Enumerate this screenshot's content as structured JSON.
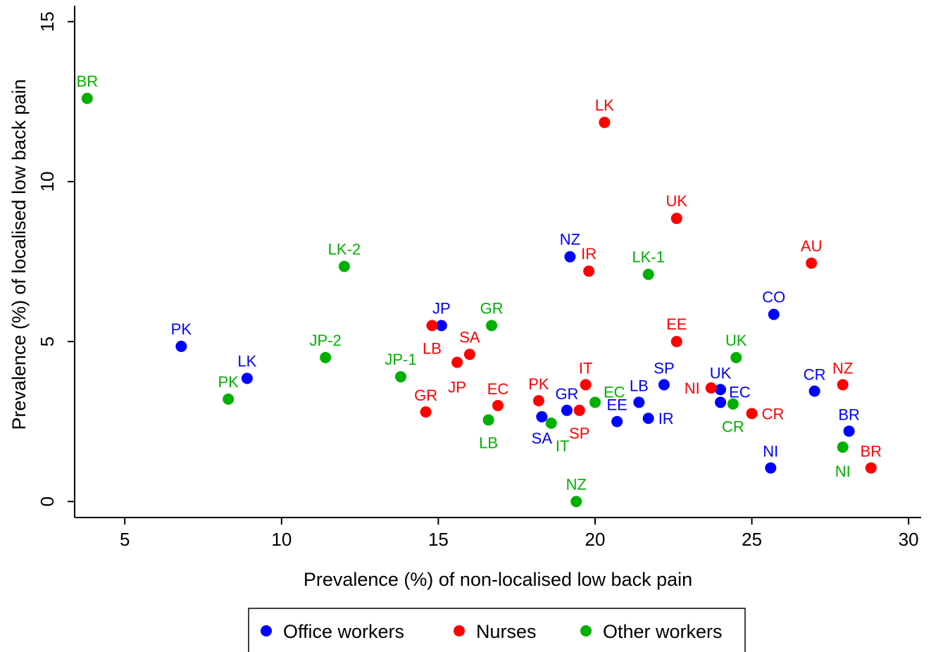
{
  "chart_data": {
    "type": "scatter",
    "xlabel": "Prevalence (%) of non-localised low back pain",
    "ylabel": "Prevalence (%) of localised low back pain",
    "xlim": [
      3.4,
      30.4
    ],
    "ylim": [
      -0.5,
      15.5
    ],
    "xticks": [
      "5",
      "10",
      "15",
      "20",
      "25",
      "30"
    ],
    "yticks": [
      "0",
      "5",
      "10",
      "15"
    ],
    "grid": false,
    "legend_position": "bottom",
    "series": [
      {
        "name": "Office workers",
        "color": "#0000ff",
        "points": [
          {
            "label": "PK",
            "x": 6.8,
            "y": 4.85
          },
          {
            "label": "LK",
            "x": 8.9,
            "y": 3.85
          },
          {
            "label": "JP",
            "x": 15.1,
            "y": 5.5
          },
          {
            "label": "NZ",
            "x": 19.2,
            "y": 7.65
          },
          {
            "label": "GR",
            "x": 19.1,
            "y": 2.85
          },
          {
            "label": "SA",
            "x": 18.3,
            "y": 2.65
          },
          {
            "label": "EE",
            "x": 20.7,
            "y": 2.5
          },
          {
            "label": "LB",
            "x": 21.4,
            "y": 3.1
          },
          {
            "label": "IR",
            "x": 21.7,
            "y": 2.6
          },
          {
            "label": "SP",
            "x": 22.2,
            "y": 3.65
          },
          {
            "label": "UK",
            "x": 24.0,
            "y": 3.5
          },
          {
            "label": "EC",
            "x": 24.0,
            "y": 3.1
          },
          {
            "label": "CO",
            "x": 25.7,
            "y": 5.85
          },
          {
            "label": "CR",
            "x": 27.0,
            "y": 3.45
          },
          {
            "label": "NI",
            "x": 25.6,
            "y": 1.05
          },
          {
            "label": "BR",
            "x": 28.1,
            "y": 2.2
          }
        ]
      },
      {
        "name": "Nurses",
        "color": "#ff0000",
        "points": [
          {
            "label": "LK",
            "x": 20.3,
            "y": 11.85
          },
          {
            "label": "UK",
            "x": 22.6,
            "y": 8.85
          },
          {
            "label": "IR",
            "x": 19.8,
            "y": 7.2
          },
          {
            "label": "AU",
            "x": 26.9,
            "y": 7.45
          },
          {
            "label": "EE",
            "x": 22.6,
            "y": 5.0
          },
          {
            "label": "LB",
            "x": 14.8,
            "y": 5.5
          },
          {
            "label": "SA",
            "x": 16.0,
            "y": 4.6
          },
          {
            "label": "JP",
            "x": 15.6,
            "y": 4.35
          },
          {
            "label": "GR",
            "x": 14.6,
            "y": 2.8
          },
          {
            "label": "EC",
            "x": 16.9,
            "y": 3.0
          },
          {
            "label": "PK",
            "x": 18.2,
            "y": 3.15
          },
          {
            "label": "IT",
            "x": 19.7,
            "y": 3.65
          },
          {
            "label": "SP",
            "x": 19.5,
            "y": 2.85
          },
          {
            "label": "NI",
            "x": 23.7,
            "y": 3.55
          },
          {
            "label": "CR",
            "x": 25.0,
            "y": 2.75
          },
          {
            "label": "NZ",
            "x": 27.9,
            "y": 3.65
          },
          {
            "label": "BR",
            "x": 28.8,
            "y": 1.05
          }
        ]
      },
      {
        "name": "Other workers",
        "color": "#00b000",
        "points": [
          {
            "label": "BR",
            "x": 3.8,
            "y": 12.6
          },
          {
            "label": "LK-2",
            "x": 12.0,
            "y": 7.35
          },
          {
            "label": "JP-2",
            "x": 11.4,
            "y": 4.5
          },
          {
            "label": "PK",
            "x": 8.3,
            "y": 3.2
          },
          {
            "label": "JP-1",
            "x": 13.8,
            "y": 3.9
          },
          {
            "label": "GR",
            "x": 16.7,
            "y": 5.5
          },
          {
            "label": "LB",
            "x": 16.6,
            "y": 2.55
          },
          {
            "label": "IT",
            "x": 18.6,
            "y": 2.45
          },
          {
            "label": "EC",
            "x": 20.0,
            "y": 3.1
          },
          {
            "label": "LK-1",
            "x": 21.7,
            "y": 7.1
          },
          {
            "label": "UK",
            "x": 24.5,
            "y": 4.5
          },
          {
            "label": "CR",
            "x": 24.4,
            "y": 3.05
          },
          {
            "label": "NZ",
            "x": 19.4,
            "y": 0.0
          },
          {
            "label": "NI",
            "x": 27.9,
            "y": 1.7
          }
        ]
      }
    ]
  }
}
